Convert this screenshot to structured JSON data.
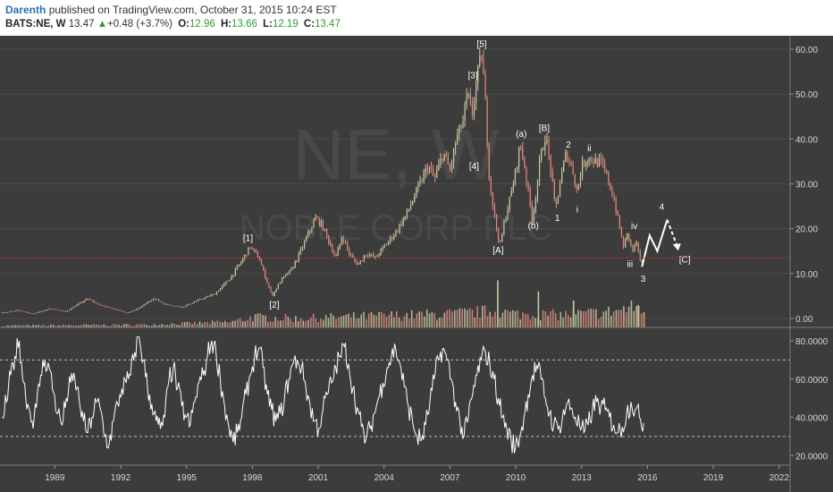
{
  "header": {
    "author": "Darenth",
    "published_text": "published on TradingView.com, October 31, 2015 10:24 EST",
    "symbol": "BATS:NE, W",
    "last": "13.47",
    "up_arrow": "▲",
    "change": "+0.48 (+3.7%)",
    "open_label": "O:",
    "open": "12.96",
    "high_label": "H:",
    "high": "13.66",
    "low_label": "L:",
    "low": "12.19",
    "close_label": "C:",
    "close": "13.47"
  },
  "watermark": {
    "ticker": "NE, W",
    "name": "NOBLE CORP PLC"
  },
  "colors": {
    "background": "#3c3c3c",
    "candle_up": "#c9c9a2",
    "candle_down": "#e0897f",
    "rsi_line": "#ffffff",
    "price_line": "#c0392b",
    "axis_text": "#d6d6d6",
    "projection": "#ffffff"
  },
  "chart_data": [
    {
      "type": "line",
      "subtype": "weekly candlestick price with volume and Elliott wave annotations",
      "x_ticks": [
        "1989",
        "1992",
        "1995",
        "1998",
        "2001",
        "2004",
        "2007",
        "2010",
        "2013",
        "2016",
        "2019",
        "2022"
      ],
      "y_ticks": [
        "0.00",
        "10.00",
        "20.00",
        "30.00",
        "40.00",
        "50.00",
        "60.00"
      ],
      "ylim": [
        -2,
        63
      ],
      "xlim": [
        1986.5,
        2022.5
      ],
      "price_line": 13.47,
      "price_path": [
        [
          1986.5,
          1.2
        ],
        [
          1987.3,
          1.8
        ],
        [
          1988.0,
          1.0
        ],
        [
          1988.8,
          2.2
        ],
        [
          1989.5,
          1.5
        ],
        [
          1990.5,
          4.5
        ],
        [
          1991.0,
          3.0
        ],
        [
          1991.8,
          2.0
        ],
        [
          1992.3,
          1.2
        ],
        [
          1992.8,
          2.2
        ],
        [
          1993.5,
          4.5
        ],
        [
          1994.0,
          3.2
        ],
        [
          1994.8,
          2.5
        ],
        [
          1995.5,
          4.0
        ],
        [
          1996.3,
          5.5
        ],
        [
          1997.0,
          9.0
        ],
        [
          1997.6,
          13.5
        ],
        [
          1997.9,
          16.0
        ],
        [
          1998.3,
          13.5
        ],
        [
          1998.6,
          9.0
        ],
        [
          1998.9,
          5.0
        ],
        [
          1999.3,
          8.5
        ],
        [
          1999.8,
          11.0
        ],
        [
          2000.2,
          15.0
        ],
        [
          2000.6,
          19.5
        ],
        [
          2000.9,
          22.5
        ],
        [
          2001.2,
          20.5
        ],
        [
          2001.5,
          17.0
        ],
        [
          2001.8,
          13.5
        ],
        [
          2002.1,
          18.5
        ],
        [
          2002.4,
          14.5
        ],
        [
          2002.8,
          12.0
        ],
        [
          2003.2,
          14.5
        ],
        [
          2003.6,
          13.5
        ],
        [
          2004.0,
          16.0
        ],
        [
          2004.5,
          19.0
        ],
        [
          2005.0,
          23.0
        ],
        [
          2005.5,
          28.5
        ],
        [
          2006.0,
          34.0
        ],
        [
          2006.3,
          31.0
        ],
        [
          2006.7,
          37.0
        ],
        [
          2007.0,
          33.0
        ],
        [
          2007.3,
          40.0
        ],
        [
          2007.6,
          44.0
        ],
        [
          2007.8,
          50.0
        ],
        [
          2008.0,
          45.0
        ],
        [
          2008.2,
          52.5
        ],
        [
          2008.45,
          59.0
        ],
        [
          2008.6,
          49.0
        ],
        [
          2008.8,
          31.0
        ],
        [
          2009.0,
          24.0
        ],
        [
          2009.15,
          19.0
        ],
        [
          2009.3,
          16.5
        ],
        [
          2009.5,
          22.0
        ],
        [
          2009.8,
          28.0
        ],
        [
          2010.0,
          33.0
        ],
        [
          2010.2,
          39.0
        ],
        [
          2010.4,
          34.0
        ],
        [
          2010.6,
          27.0
        ],
        [
          2010.75,
          22.0
        ],
        [
          2010.9,
          27.0
        ],
        [
          2011.1,
          35.0
        ],
        [
          2011.35,
          41.0
        ],
        [
          2011.6,
          33.0
        ],
        [
          2011.8,
          24.0
        ],
        [
          2012.0,
          30.0
        ],
        [
          2012.3,
          37.0
        ],
        [
          2012.6,
          33.0
        ],
        [
          2012.8,
          28.0
        ],
        [
          2013.0,
          34.0
        ],
        [
          2013.3,
          36.0
        ],
        [
          2013.6,
          35.0
        ],
        [
          2013.9,
          34.5
        ],
        [
          2014.2,
          31.0
        ],
        [
          2014.5,
          26.0
        ],
        [
          2014.7,
          21.0
        ],
        [
          2014.9,
          16.0
        ],
        [
          2015.1,
          19.0
        ],
        [
          2015.3,
          15.0
        ],
        [
          2015.5,
          17.0
        ],
        [
          2015.7,
          11.5
        ],
        [
          2015.83,
          13.5
        ]
      ],
      "volume_path": [
        [
          1986.5,
          0.4
        ],
        [
          1993.0,
          0.6
        ],
        [
          1997.0,
          1.2
        ],
        [
          1998.0,
          2.3
        ],
        [
          2000.0,
          2.0
        ],
        [
          2004.0,
          2.6
        ],
        [
          2007.0,
          3.0
        ],
        [
          2009.0,
          3.6
        ],
        [
          2010.0,
          3.0
        ],
        [
          2012.0,
          2.8
        ],
        [
          2014.0,
          3.3
        ],
        [
          2015.5,
          4.5
        ],
        [
          2015.83,
          4.0
        ]
      ],
      "volume_spikes": [
        [
          2009.15,
          10.5
        ],
        [
          2011.0,
          8.0
        ],
        [
          2012.6,
          6.0
        ],
        [
          2015.55,
          5.0
        ]
      ],
      "annotations": [
        {
          "label": "[1]",
          "x": 1997.8,
          "y": 17.2,
          "style": "bracket"
        },
        {
          "label": "[2]",
          "x": 1999.0,
          "y": 2.4,
          "style": "bracket"
        },
        {
          "label": "[3]",
          "x": 2008.05,
          "y": 53.5,
          "style": "bracket"
        },
        {
          "label": "[4]",
          "x": 2008.1,
          "y": 33.3,
          "style": "bracket"
        },
        {
          "label": "[5]",
          "x": 2008.45,
          "y": 60.5,
          "style": "bracket"
        },
        {
          "label": "[A]",
          "x": 2009.2,
          "y": 14.5,
          "style": "bracket"
        },
        {
          "label": "(a)",
          "x": 2010.25,
          "y": 40.5,
          "style": "round"
        },
        {
          "label": "(b)",
          "x": 2010.8,
          "y": 20.0,
          "style": "round"
        },
        {
          "label": "[B]",
          "x": 2011.3,
          "y": 41.8,
          "style": "bracket"
        },
        {
          "label": "1",
          "x": 2011.9,
          "y": 21.7,
          "style": "plain"
        },
        {
          "label": "2",
          "x": 2012.4,
          "y": 38.1,
          "style": "plain"
        },
        {
          "label": "i",
          "x": 2012.8,
          "y": 23.6,
          "style": "plain"
        },
        {
          "label": "ii",
          "x": 2013.35,
          "y": 37.3,
          "style": "plain"
        },
        {
          "label": "iv",
          "x": 2015.4,
          "y": 19.9,
          "style": "plain"
        },
        {
          "label": "iii",
          "x": 2015.2,
          "y": 11.5,
          "style": "plain"
        },
        {
          "label": "3",
          "x": 2015.8,
          "y": 8.2,
          "style": "plain"
        },
        {
          "label": "4",
          "x": 2016.65,
          "y": 24.2,
          "style": "plain"
        },
        {
          "label": "[C]",
          "x": 2017.7,
          "y": 12.5,
          "style": "bracket"
        }
      ],
      "projection_solid": [
        [
          2015.75,
          11.5
        ],
        [
          2016.1,
          18.5
        ],
        [
          2016.45,
          15.0
        ],
        [
          2016.9,
          22.0
        ]
      ],
      "projection_dashed": [
        [
          2016.9,
          22.0
        ],
        [
          2017.4,
          15.5
        ]
      ]
    },
    {
      "type": "line",
      "subtype": "oscillator",
      "y_ticks": [
        "20.0000",
        "40.0000",
        "60.0000",
        "80.0000"
      ],
      "ylim": [
        15,
        87
      ],
      "reference_lines": [
        30,
        70
      ],
      "series": [
        {
          "values": [
            40,
            48,
            62,
            72,
            80,
            58,
            47,
            38,
            45,
            62,
            70,
            66,
            53,
            42,
            36,
            50,
            58,
            60,
            49,
            38,
            32,
            40,
            48,
            44,
            30,
            26,
            38,
            47,
            55,
            58,
            62,
            74,
            82,
            70,
            55,
            47,
            38,
            34,
            40,
            60,
            66,
            55,
            46,
            40,
            36,
            48,
            58,
            62,
            72,
            80,
            74,
            60,
            46,
            35,
            27,
            32,
            40,
            52,
            62,
            72,
            76,
            66,
            52,
            44,
            38,
            42,
            50,
            60,
            68,
            70,
            66,
            56,
            46,
            38,
            34,
            44,
            52,
            58,
            66,
            72,
            77,
            68,
            55,
            45,
            35,
            28,
            34,
            42,
            50,
            58,
            66,
            72,
            76,
            68,
            56,
            46,
            37,
            30,
            28,
            36,
            48,
            60,
            70,
            76,
            70,
            60,
            48,
            38,
            30,
            40,
            52,
            62,
            70,
            74,
            68,
            60,
            50,
            40,
            34,
            28,
            24,
            30,
            40,
            52,
            62,
            67,
            60,
            50,
            42,
            36,
            34,
            40,
            47,
            45,
            40,
            36,
            32,
            36,
            44,
            48,
            46,
            44,
            40,
            36,
            32,
            35,
            42,
            48,
            44,
            40,
            37
          ]
        }
      ]
    }
  ]
}
